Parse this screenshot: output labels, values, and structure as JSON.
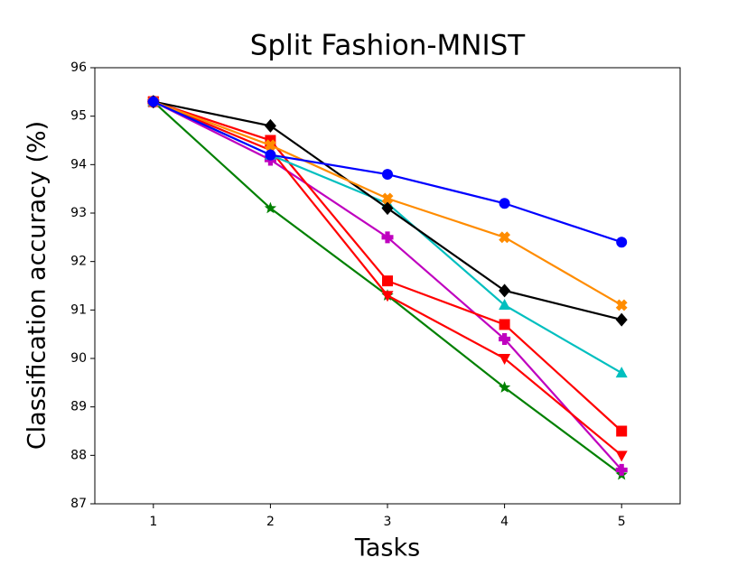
{
  "chart_data": {
    "type": "line",
    "title": "Split Fashion-MNIST",
    "x_label": "Tasks",
    "y_label": "Classification accuracy (%)",
    "x": [
      1,
      2,
      3,
      4,
      5
    ],
    "xlim": [
      0.5,
      5.5
    ],
    "xticks": [
      1,
      2,
      3,
      4,
      5
    ],
    "ylim": [
      87,
      96
    ],
    "yticks": [
      87,
      88,
      89,
      90,
      91,
      92,
      93,
      94,
      95,
      96
    ],
    "series": [
      {
        "color": "#008000",
        "marker": "star",
        "values": [
          95.3,
          93.1,
          91.3,
          89.4,
          87.6
        ]
      },
      {
        "color": "#bf00bf",
        "marker": "plus",
        "values": [
          95.3,
          94.1,
          92.5,
          90.4,
          87.7
        ]
      },
      {
        "color": "#ff0000",
        "marker": "triangle-down",
        "values": [
          95.3,
          94.3,
          91.3,
          90.0,
          88.0
        ]
      },
      {
        "color": "#ff0000",
        "marker": "square",
        "values": [
          95.3,
          94.5,
          91.6,
          90.7,
          88.5
        ]
      },
      {
        "color": "#00bfbf",
        "marker": "triangle-up",
        "values": [
          95.3,
          94.2,
          93.2,
          91.1,
          89.7
        ]
      },
      {
        "color": "#000000",
        "marker": "diamond",
        "values": [
          95.3,
          94.8,
          93.1,
          91.4,
          90.8
        ]
      },
      {
        "color": "#ff8c00",
        "marker": "x",
        "values": [
          95.3,
          94.4,
          93.3,
          92.5,
          91.1
        ]
      },
      {
        "color": "#0000ff",
        "marker": "circle",
        "values": [
          95.3,
          94.2,
          93.8,
          93.2,
          92.4
        ]
      }
    ]
  }
}
